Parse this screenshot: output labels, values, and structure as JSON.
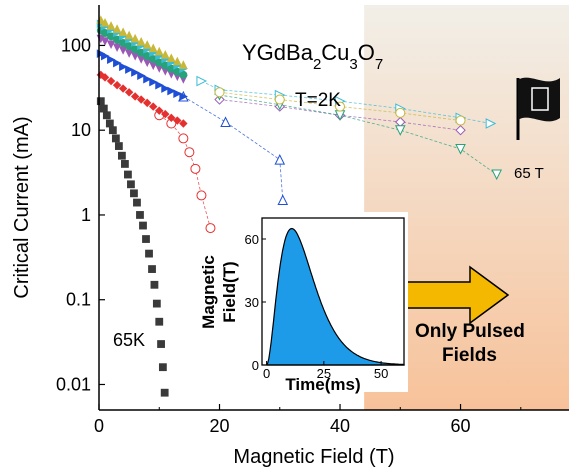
{
  "chart_data": {
    "type": "scatter",
    "xlabel": "Magnetic Field (T)",
    "ylabel": "Critical Current (mA)",
    "xlim": [
      0,
      78
    ],
    "ylim": [
      0.005,
      300
    ],
    "y_scale": "log",
    "x_ticks": [
      "0",
      "20",
      "40",
      "60"
    ],
    "y_ticks": [
      "0.01",
      "0.1",
      "1",
      "10",
      "100"
    ],
    "grid": false,
    "compound_label": "YGdBa2Cu3O7",
    "temperature_label": "T=2K",
    "field_label": "65 T",
    "series_label_65K": "65K",
    "pulsed_label_line1": "Only Pulsed",
    "pulsed_label_line2": "Fields",
    "pulsed_region_start": 44,
    "colors": {
      "pulsed_region_top": "#f2efe8",
      "pulsed_region_bottom": "#f7c29a",
      "arrow": "#f5b800",
      "inset_fill": "#1e9be8"
    },
    "series": [
      {
        "color": "#3a3a3a",
        "marker": "square",
        "dc_points": [
          [
            0.3,
            22
          ],
          [
            0.8,
            18
          ],
          [
            1.3,
            15
          ],
          [
            1.8,
            12
          ],
          [
            2.3,
            10
          ],
          [
            2.8,
            8
          ],
          [
            3.3,
            6.5
          ],
          [
            3.8,
            5
          ],
          [
            4.3,
            4
          ],
          [
            4.8,
            3
          ],
          [
            5.3,
            2.3
          ],
          [
            5.8,
            1.8
          ],
          [
            6.3,
            1.4
          ],
          [
            6.8,
            1.0
          ],
          [
            7.3,
            0.75
          ],
          [
            7.8,
            0.52
          ],
          [
            8.3,
            0.35
          ],
          [
            8.8,
            0.23
          ],
          [
            9.2,
            0.15
          ],
          [
            9.6,
            0.09
          ],
          [
            10.0,
            0.055
          ],
          [
            10.3,
            0.03
          ],
          [
            10.6,
            0.016
          ],
          [
            10.9,
            0.008
          ]
        ],
        "pulsed_points": []
      },
      {
        "color": "#e53030",
        "marker": "diamond",
        "dc_points": [
          [
            0.3,
            45
          ],
          [
            1,
            42
          ],
          [
            2,
            38
          ],
          [
            3,
            34
          ],
          [
            4,
            31
          ],
          [
            5,
            28
          ],
          [
            6,
            25
          ],
          [
            7,
            23
          ],
          [
            8,
            21
          ],
          [
            9,
            19
          ],
          [
            10,
            17
          ],
          [
            11,
            15.5
          ],
          [
            12,
            14
          ],
          [
            13,
            13
          ],
          [
            14,
            12
          ]
        ],
        "pulsed_points": [
          [
            10,
            15
          ],
          [
            12,
            12
          ],
          [
            14,
            8
          ],
          [
            15,
            5.5
          ],
          [
            16,
            3.5
          ],
          [
            17,
            1.7
          ],
          [
            18.5,
            0.7
          ]
        ],
        "pulsed_marker": "circle"
      },
      {
        "color": "#1f4fd6",
        "marker": "triangle-right",
        "dc_points": [
          [
            0.3,
            80
          ],
          [
            1,
            75
          ],
          [
            2,
            68
          ],
          [
            3,
            62
          ],
          [
            4,
            56
          ],
          [
            5,
            52
          ],
          [
            6,
            48
          ],
          [
            7,
            44
          ],
          [
            8,
            40
          ],
          [
            9,
            37
          ],
          [
            10,
            34
          ],
          [
            11,
            31
          ],
          [
            12,
            29
          ],
          [
            13,
            27
          ],
          [
            14,
            25
          ]
        ],
        "pulsed_points": [
          [
            14,
            25
          ],
          [
            21,
            12.5
          ],
          [
            30,
            4.5
          ],
          [
            30.5,
            1.5
          ]
        ],
        "pulsed_marker": "triangle-up"
      },
      {
        "color": "#9b59b6",
        "marker": "triangle-down",
        "dc_points": [
          [
            0.3,
            120
          ],
          [
            1,
            112
          ],
          [
            2,
            103
          ],
          [
            3,
            95
          ],
          [
            4,
            88
          ],
          [
            5,
            81
          ],
          [
            6,
            75
          ],
          [
            7,
            69
          ],
          [
            8,
            63
          ],
          [
            9,
            58
          ],
          [
            10,
            54
          ],
          [
            11,
            50
          ],
          [
            12,
            46
          ],
          [
            13,
            43
          ],
          [
            14,
            40
          ]
        ],
        "pulsed_points": [
          [
            20,
            23
          ],
          [
            30,
            19
          ],
          [
            40,
            15
          ],
          [
            50,
            12.5
          ],
          [
            60,
            10
          ]
        ],
        "pulsed_marker": "diamond"
      },
      {
        "color": "#27a27a",
        "marker": "circle",
        "dc_points": [
          [
            0.3,
            150
          ],
          [
            1,
            140
          ],
          [
            2,
            128
          ],
          [
            3,
            117
          ],
          [
            4,
            107
          ],
          [
            5,
            98
          ],
          [
            6,
            90
          ],
          [
            7,
            82
          ],
          [
            8,
            75
          ],
          [
            9,
            69
          ],
          [
            10,
            63
          ],
          [
            11,
            58
          ],
          [
            12,
            53
          ],
          [
            13,
            49
          ],
          [
            14,
            45
          ]
        ],
        "pulsed_points": [
          [
            20,
            26
          ],
          [
            30,
            20
          ],
          [
            40,
            15
          ],
          [
            50,
            10
          ],
          [
            60,
            6
          ],
          [
            66,
            3
          ]
        ],
        "pulsed_marker": "triangle-down"
      },
      {
        "color": "#3bbcd6",
        "marker": "triangle-right",
        "dc_points": [
          [
            0.3,
            180
          ],
          [
            1,
            168
          ],
          [
            2,
            154
          ],
          [
            3,
            141
          ],
          [
            4,
            129
          ],
          [
            5,
            118
          ],
          [
            6,
            108
          ],
          [
            7,
            99
          ],
          [
            8,
            90
          ],
          [
            9,
            82
          ],
          [
            10,
            75
          ],
          [
            11,
            69
          ],
          [
            12,
            63
          ],
          [
            13,
            58
          ],
          [
            14,
            53
          ]
        ],
        "pulsed_points": [
          [
            17,
            38
          ],
          [
            20,
            30
          ],
          [
            30,
            26
          ],
          [
            40,
            22
          ],
          [
            50,
            18
          ],
          [
            60,
            14
          ],
          [
            65,
            12
          ]
        ],
        "pulsed_marker": "triangle-right"
      },
      {
        "color": "#c8b83a",
        "marker": "triangle-up",
        "dc_points": [
          [
            0.3,
            200
          ],
          [
            1,
            186
          ],
          [
            2,
            171
          ],
          [
            3,
            157
          ],
          [
            4,
            144
          ],
          [
            5,
            132
          ],
          [
            6,
            121
          ],
          [
            7,
            111
          ],
          [
            8,
            102
          ],
          [
            9,
            93
          ],
          [
            10,
            85
          ],
          [
            11,
            78
          ],
          [
            12,
            71
          ],
          [
            13,
            65
          ],
          [
            14,
            59
          ]
        ],
        "pulsed_points": [
          [
            20,
            28
          ],
          [
            30,
            23
          ],
          [
            40,
            19
          ],
          [
            50,
            16
          ],
          [
            60,
            13
          ]
        ],
        "pulsed_marker": "circle"
      }
    ],
    "inset": {
      "xlabel": "Time(ms)",
      "ylabel_line1": "Magnetic",
      "ylabel_line2": "Field(T)",
      "x_ticks": [
        "0",
        "25",
        "50"
      ],
      "y_ticks": [
        "0",
        "30",
        "60"
      ],
      "xlim": [
        -2,
        60
      ],
      "ylim": [
        0,
        70
      ],
      "peak_time_ms": 11,
      "peak_field_T": 65
    }
  }
}
